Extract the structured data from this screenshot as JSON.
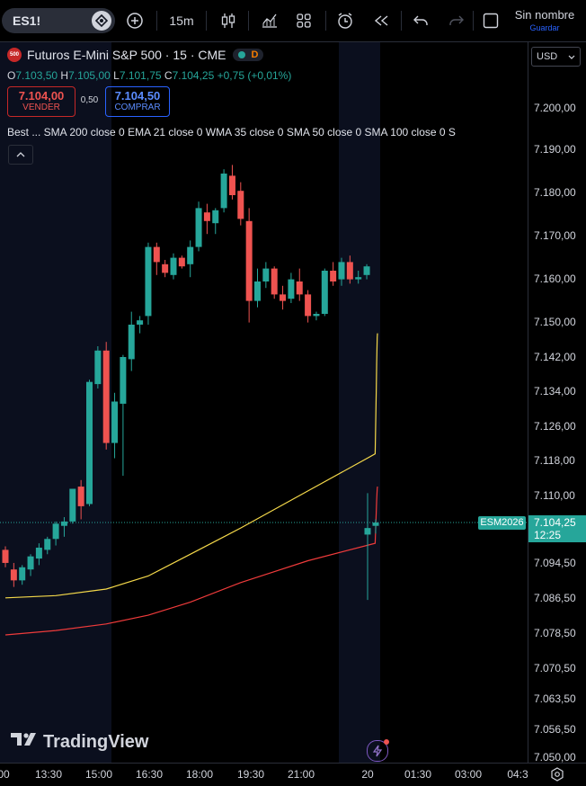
{
  "toolbar": {
    "symbol": "ES1!",
    "interval": "15m",
    "layout_name": "Sin nombre",
    "save_label": "Guardar"
  },
  "legend": {
    "title": "Futuros E-Mini S&P 500 · 15 · CME",
    "badge": "D",
    "logo_text": "500",
    "open_label": "O",
    "open": "7.103,50",
    "high_label": "H",
    "high": "7.105,00",
    "low_label": "L",
    "low": "7.101,75",
    "close_label": "C",
    "close": "7.104,25",
    "change": "+0,75 (+0,01%)"
  },
  "trade": {
    "sell_price": "7.104,00",
    "sell_label": "VENDER",
    "spread": "0,50",
    "buy_price": "7.104,50",
    "buy_label": "COMPRAR"
  },
  "indicators_text": "Best ...   SMA 200 close 0 EMA 21 close 0 WMA 35 close 0 SMA 50 close 0 SMA 100 close 0 S",
  "price_scale": {
    "currency": "USD",
    "labels": [
      "7.200,00",
      "7.190,00",
      "7.180,00",
      "7.170,00",
      "7.160,00",
      "7.150,00",
      "7.142,00",
      "7.134,00",
      "7.126,00",
      "7.118,00",
      "7.110,00",
      "7.094,50",
      "7.086,50",
      "7.078,50",
      "7.070,50",
      "7.063,50",
      "7.056,50",
      "7.050,00"
    ],
    "current_price": "7.104,25",
    "countdown": "12:25",
    "contract_label": "ESM2026"
  },
  "time_scale": {
    "labels": [
      "00",
      "13:30",
      "15:00",
      "16:30",
      "18:00",
      "19:30",
      "21:00",
      "20",
      "01:30",
      "03:00",
      "04:3"
    ]
  },
  "branding": "TradingView",
  "colors": {
    "up": "#26a69a",
    "down": "#ef5350",
    "ma_yellow": "#f5d94a",
    "ma_red": "#ef3b3b",
    "background": "#000000"
  },
  "chart_data": {
    "type": "candlestick",
    "interval": "15",
    "ylim": [
      7050,
      7205
    ],
    "candles": [
      {
        "o": 7098.0,
        "h": 7098.8,
        "l": 7094.0,
        "c": 7095.0
      },
      {
        "o": 7093.5,
        "h": 7095.0,
        "l": 7089.5,
        "c": 7091.0
      },
      {
        "o": 7091.0,
        "h": 7094.5,
        "l": 7090.0,
        "c": 7094.0
      },
      {
        "o": 7093.5,
        "h": 7097.0,
        "l": 7092.0,
        "c": 7096.5
      },
      {
        "o": 7096.0,
        "h": 7099.5,
        "l": 7094.5,
        "c": 7098.5
      },
      {
        "o": 7098.0,
        "h": 7101.0,
        "l": 7097.0,
        "c": 7100.5
      },
      {
        "o": 7100.5,
        "h": 7104.5,
        "l": 7099.0,
        "c": 7104.0
      },
      {
        "o": 7103.5,
        "h": 7105.5,
        "l": 7101.0,
        "c": 7104.5
      },
      {
        "o": 7104.5,
        "h": 7112.0,
        "l": 7104.0,
        "c": 7112.0
      },
      {
        "o": 7112.5,
        "h": 7114.0,
        "l": 7105.0,
        "c": 7108.0
      },
      {
        "o": 7108.5,
        "h": 7137.0,
        "l": 7108.0,
        "c": 7136.5
      },
      {
        "o": 7136.0,
        "h": 7145.0,
        "l": 7135.0,
        "c": 7144.0
      },
      {
        "o": 7144.0,
        "h": 7146.0,
        "l": 7121.0,
        "c": 7122.5
      },
      {
        "o": 7122.5,
        "h": 7134.0,
        "l": 7119.0,
        "c": 7132.0
      },
      {
        "o": 7131.5,
        "h": 7143.0,
        "l": 7115.0,
        "c": 7142.5
      },
      {
        "o": 7142.0,
        "h": 7153.0,
        "l": 7139.0,
        "c": 7150.0
      },
      {
        "o": 7150.0,
        "h": 7152.0,
        "l": 7148.0,
        "c": 7151.0
      },
      {
        "o": 7152.0,
        "h": 7169.0,
        "l": 7150.0,
        "c": 7168.0
      },
      {
        "o": 7168.0,
        "h": 7169.0,
        "l": 7161.5,
        "c": 7164.5
      },
      {
        "o": 7164.0,
        "h": 7165.0,
        "l": 7161.0,
        "c": 7162.0
      },
      {
        "o": 7161.5,
        "h": 7166.5,
        "l": 7160.5,
        "c": 7165.5
      },
      {
        "o": 7165.5,
        "h": 7166.0,
        "l": 7163.0,
        "c": 7163.5
      },
      {
        "o": 7164.0,
        "h": 7169.5,
        "l": 7161.0,
        "c": 7168.0
      },
      {
        "o": 7168.0,
        "h": 7178.5,
        "l": 7167.0,
        "c": 7177.0
      },
      {
        "o": 7176.0,
        "h": 7178.0,
        "l": 7171.0,
        "c": 7174.0
      },
      {
        "o": 7173.5,
        "h": 7177.0,
        "l": 7171.0,
        "c": 7176.5
      },
      {
        "o": 7177.0,
        "h": 7186.0,
        "l": 7176.0,
        "c": 7185.0
      },
      {
        "o": 7184.5,
        "h": 7187.0,
        "l": 7179.0,
        "c": 7180.0
      },
      {
        "o": 7181.0,
        "h": 7183.0,
        "l": 7173.0,
        "c": 7174.5
      },
      {
        "o": 7174.0,
        "h": 7177.0,
        "l": 7150.5,
        "c": 7155.5
      },
      {
        "o": 7155.5,
        "h": 7163.0,
        "l": 7154.0,
        "c": 7160.0
      },
      {
        "o": 7160.0,
        "h": 7164.5,
        "l": 7158.5,
        "c": 7163.0
      },
      {
        "o": 7163.0,
        "h": 7163.5,
        "l": 7156.0,
        "c": 7157.0
      },
      {
        "o": 7157.0,
        "h": 7159.0,
        "l": 7153.5,
        "c": 7155.5
      },
      {
        "o": 7156.0,
        "h": 7162.0,
        "l": 7155.0,
        "c": 7160.5
      },
      {
        "o": 7160.0,
        "h": 7163.0,
        "l": 7155.5,
        "c": 7157.0
      },
      {
        "o": 7157.0,
        "h": 7158.0,
        "l": 7150.5,
        "c": 7152.0
      },
      {
        "o": 7152.0,
        "h": 7153.0,
        "l": 7151.0,
        "c": 7152.5
      },
      {
        "o": 7152.5,
        "h": 7163.0,
        "l": 7152.0,
        "c": 7162.5
      },
      {
        "o": 7162.5,
        "h": 7164.5,
        "l": 7159.0,
        "c": 7160.0
      },
      {
        "o": 7160.5,
        "h": 7165.5,
        "l": 7159.0,
        "c": 7164.5
      },
      {
        "o": 7164.5,
        "h": 7166.0,
        "l": 7159.5,
        "c": 7160.5
      },
      {
        "o": 7160.5,
        "h": 7162.5,
        "l": 7159.5,
        "c": 7161.0
      },
      {
        "o": 7161.5,
        "h": 7164.0,
        "l": 7160.5,
        "c": 7163.5
      },
      {
        "o": 7101.5,
        "h": 7111.0,
        "l": 7086.5,
        "c": 7103.0
      },
      {
        "o": 7103.5,
        "h": 7105.0,
        "l": 7101.75,
        "c": 7104.25
      }
    ],
    "moving_averages": [
      {
        "color": "yellow",
        "points": [
          [
            0,
            7087.0
          ],
          [
            6,
            7087.5
          ],
          [
            12,
            7089.0
          ],
          [
            17,
            7092.0
          ],
          [
            22,
            7097.0
          ],
          [
            28,
            7103.0
          ],
          [
            36,
            7111.5
          ],
          [
            44,
            7120.0
          ],
          [
            52,
            7127.0
          ],
          [
            60,
            7134.0
          ],
          [
            68,
            7141.0
          ],
          [
            76,
            7147.0
          ],
          [
            80,
            7148.0
          ]
        ]
      },
      {
        "color": "red",
        "points": [
          [
            0,
            7078.5
          ],
          [
            6,
            7079.5
          ],
          [
            12,
            7081.0
          ],
          [
            17,
            7083.0
          ],
          [
            22,
            7086.0
          ],
          [
            28,
            7090.5
          ],
          [
            36,
            7095.5
          ],
          [
            44,
            7099.5
          ],
          [
            52,
            7103.0
          ],
          [
            60,
            7106.5
          ],
          [
            68,
            7109.5
          ],
          [
            76,
            7112.0
          ],
          [
            80,
            7112.5
          ]
        ]
      }
    ]
  }
}
